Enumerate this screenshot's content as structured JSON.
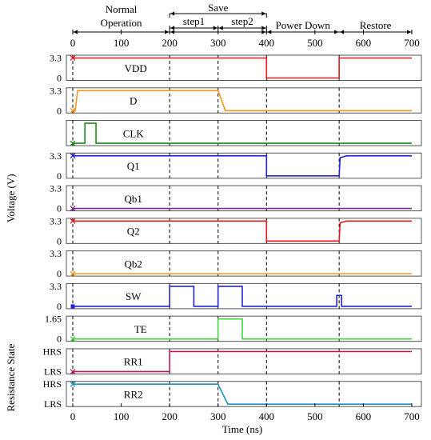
{
  "chart_data": {
    "type": "line",
    "xlabel": "Time (ns)",
    "ylabel_voltage": "Voltage (V)",
    "ylabel_resistance": "Resistance State",
    "xlim": [
      0,
      700
    ],
    "xticks": [
      0,
      100,
      200,
      300,
      400,
      500,
      600,
      700
    ],
    "phase_boundaries": [
      200,
      300,
      400,
      550
    ],
    "phases": [
      {
        "label": "Normal Operation",
        "line1": "Normal",
        "line2": "Operation",
        "start": 0,
        "end": 200
      },
      {
        "label": "Save",
        "start": 200,
        "end": 400
      },
      {
        "label": "step1",
        "start": 200,
        "end": 300
      },
      {
        "label": "step2",
        "start": 300,
        "end": 400
      },
      {
        "label": "Power Down",
        "start": 400,
        "end": 550
      },
      {
        "label": "Restore",
        "start": 550,
        "end": 700
      }
    ],
    "series": [
      {
        "name": "VDD",
        "color": "#e8191c",
        "ylim": [
          0,
          3.3
        ],
        "tick_labels": [
          "3.3",
          "0"
        ],
        "points": [
          [
            0,
            3.3
          ],
          [
            400,
            3.3
          ],
          [
            400,
            0
          ],
          [
            550,
            0
          ],
          [
            550,
            3.3
          ],
          [
            700,
            3.3
          ]
        ]
      },
      {
        "name": "D",
        "color": "#f7941d",
        "ylim": [
          0,
          3.3
        ],
        "tick_labels": [
          "3.3",
          "0"
        ],
        "points": [
          [
            0,
            0
          ],
          [
            5,
            0
          ],
          [
            10,
            3.3
          ],
          [
            300,
            3.3
          ],
          [
            315,
            0
          ],
          [
            700,
            0
          ]
        ]
      },
      {
        "name": "CLK",
        "color": "#1a8a1a",
        "ylim": [
          0,
          3.3
        ],
        "tick_labels": [],
        "points": [
          [
            0,
            0
          ],
          [
            25,
            0
          ],
          [
            25,
            3.3
          ],
          [
            48,
            3.3
          ],
          [
            48,
            0
          ],
          [
            700,
            0
          ]
        ]
      },
      {
        "name": "Q1",
        "color": "#2424d6",
        "ylim": [
          0,
          3.3
        ],
        "tick_labels": [
          "3.3",
          "0"
        ],
        "points": [
          [
            0,
            3.3
          ],
          [
            400,
            3.3
          ],
          [
            400,
            0
          ],
          [
            550,
            0
          ],
          [
            552,
            3.0
          ],
          [
            565,
            3.3
          ],
          [
            700,
            3.3
          ]
        ]
      },
      {
        "name": "Qb1",
        "color": "#7a2a8c",
        "ylim": [
          0,
          3.3
        ],
        "tick_labels": [
          "3.3",
          "0"
        ],
        "points": [
          [
            0,
            0
          ],
          [
            700,
            0
          ]
        ]
      },
      {
        "name": "Q2",
        "color": "#e8191c",
        "ylim": [
          0,
          3.3
        ],
        "tick_labels": [
          "3.3",
          "0"
        ],
        "points": [
          [
            0,
            3.3
          ],
          [
            400,
            3.3
          ],
          [
            400,
            0
          ],
          [
            550,
            0
          ],
          [
            552,
            3.0
          ],
          [
            565,
            3.3
          ],
          [
            700,
            3.3
          ]
        ]
      },
      {
        "name": "Qb2",
        "color": "#f7941d",
        "ylim": [
          0,
          3.3
        ],
        "tick_labels": [
          "3.3",
          "0"
        ],
        "points": [
          [
            0,
            0
          ],
          [
            700,
            0
          ]
        ]
      },
      {
        "name": "SW",
        "color": "#2424d6",
        "ylim": [
          0,
          3.3
        ],
        "tick_labels": [
          "3.3",
          "0"
        ],
        "points": [
          [
            0,
            0
          ],
          [
            200,
            0
          ],
          [
            200,
            3.3
          ],
          [
            250,
            3.3
          ],
          [
            250,
            0
          ],
          [
            300,
            0
          ],
          [
            300,
            3.3
          ],
          [
            350,
            3.3
          ],
          [
            350,
            0
          ],
          [
            545,
            0
          ],
          [
            545,
            1.8
          ],
          [
            555,
            1.8
          ],
          [
            555,
            0
          ],
          [
            700,
            0
          ]
        ]
      },
      {
        "name": "TE",
        "color": "#3fd43f",
        "ylim": [
          0,
          1.65
        ],
        "tick_labels": [
          "1.65",
          "0"
        ],
        "points": [
          [
            0,
            0
          ],
          [
            300,
            0
          ],
          [
            300,
            1.65
          ],
          [
            350,
            1.65
          ],
          [
            350,
            0
          ],
          [
            700,
            0
          ]
        ]
      },
      {
        "name": "RR1",
        "color": "#c2185b",
        "ylim": [
          "LRS",
          "HRS"
        ],
        "tick_labels": [
          "HRS",
          "LRS"
        ],
        "points": [
          [
            0,
            "LRS"
          ],
          [
            200,
            "LRS"
          ],
          [
            200,
            "HRS"
          ],
          [
            700,
            "HRS"
          ]
        ]
      },
      {
        "name": "RR2",
        "color": "#1f8fb8",
        "ylim": [
          "LRS",
          "HRS"
        ],
        "tick_labels": [
          "HRS",
          "LRS"
        ],
        "points": [
          [
            0,
            "HRS"
          ],
          [
            300,
            "HRS"
          ],
          [
            320,
            "LRS"
          ],
          [
            700,
            "LRS"
          ]
        ]
      }
    ]
  }
}
